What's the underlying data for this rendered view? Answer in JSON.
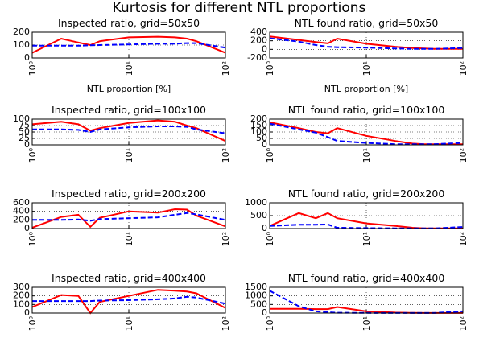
{
  "title": "Kurtosis for different NTL proportions",
  "chart_data": [
    {
      "type": "line",
      "title": "Inspected ratio, grid=50x50",
      "xlabel": "NTL proportion [%]",
      "xscale": "log",
      "x": [
        1,
        2,
        3,
        4,
        5,
        10,
        20,
        30,
        40,
        50,
        100
      ],
      "xlim": [
        1,
        100
      ],
      "xticks": [
        {
          "value": 1,
          "label": "10⁰"
        },
        {
          "value": 10,
          "label": "10¹"
        },
        {
          "value": 100,
          "label": "10²"
        }
      ],
      "ylim": [
        0,
        200
      ],
      "yticks": [
        0,
        100,
        200
      ],
      "grid": true,
      "series": [
        {
          "color": "#ff0000",
          "dash": "solid",
          "values": [
            40,
            150,
            120,
            100,
            130,
            160,
            165,
            160,
            150,
            130,
            40
          ]
        },
        {
          "color": "#0000ff",
          "dash": "dashed",
          "values": [
            95,
            95,
            95,
            98,
            100,
            105,
            110,
            110,
            115,
            115,
            80
          ]
        }
      ]
    },
    {
      "type": "line",
      "title": "NTL found ratio, grid=50x50",
      "xlabel": "NTL proportion [%]",
      "xscale": "log",
      "x": [
        1,
        2,
        3,
        4,
        5,
        10,
        20,
        30,
        40,
        50,
        100
      ],
      "xlim": [
        1,
        100
      ],
      "xticks": [
        {
          "value": 1,
          "label": "10⁰"
        },
        {
          "value": 10,
          "label": "10¹"
        },
        {
          "value": 100,
          "label": "10²"
        }
      ],
      "ylim": [
        -200,
        400
      ],
      "yticks": [
        -200,
        0,
        200,
        400
      ],
      "grid": true,
      "series": [
        {
          "color": "#ff0000",
          "dash": "solid",
          "values": [
            300,
            220,
            170,
            140,
            250,
            130,
            60,
            30,
            20,
            10,
            10
          ]
        },
        {
          "color": "#0000ff",
          "dash": "dashed",
          "values": [
            260,
            180,
            100,
            60,
            50,
            40,
            20,
            10,
            10,
            10,
            30
          ]
        }
      ]
    },
    {
      "type": "line",
      "title": "Inspected ratio, grid=100x100",
      "xscale": "log",
      "x": [
        1,
        2,
        3,
        4,
        5,
        10,
        20,
        30,
        40,
        50,
        100
      ],
      "xlim": [
        1,
        100
      ],
      "xticks": [
        {
          "value": 1,
          "label": "10⁰"
        },
        {
          "value": 10,
          "label": "10¹"
        },
        {
          "value": 100,
          "label": "10²"
        }
      ],
      "ylim": [
        0,
        100
      ],
      "yticks": [
        0,
        25,
        50,
        75,
        100
      ],
      "grid": true,
      "series": [
        {
          "color": "#ff0000",
          "dash": "solid",
          "values": [
            80,
            90,
            80,
            55,
            65,
            85,
            95,
            90,
            75,
            65,
            15
          ]
        },
        {
          "color": "#0000ff",
          "dash": "dashed",
          "values": [
            60,
            60,
            58,
            50,
            60,
            68,
            72,
            72,
            70,
            60,
            45
          ]
        }
      ]
    },
    {
      "type": "line",
      "title": "NTL found ratio, grid=100x100",
      "xscale": "log",
      "x": [
        1,
        2,
        3,
        4,
        5,
        10,
        20,
        30,
        40,
        50,
        100
      ],
      "xlim": [
        1,
        100
      ],
      "xticks": [
        {
          "value": 1,
          "label": "10⁰"
        },
        {
          "value": 10,
          "label": "10¹"
        },
        {
          "value": 100,
          "label": "10²"
        }
      ],
      "ylim": [
        0,
        200
      ],
      "yticks": [
        0,
        50,
        100,
        150,
        200
      ],
      "grid": true,
      "series": [
        {
          "color": "#ff0000",
          "dash": "solid",
          "values": [
            175,
            130,
            100,
            90,
            130,
            70,
            30,
            10,
            5,
            5,
            5
          ]
        },
        {
          "color": "#0000ff",
          "dash": "dashed",
          "values": [
            165,
            120,
            95,
            60,
            30,
            15,
            5,
            5,
            5,
            5,
            15
          ]
        }
      ]
    },
    {
      "type": "line",
      "title": "Inspected ratio, grid=200x200",
      "xscale": "log",
      "x": [
        1,
        2,
        3,
        4,
        5,
        10,
        20,
        30,
        40,
        50,
        100
      ],
      "xlim": [
        1,
        100
      ],
      "xticks": [
        {
          "value": 1,
          "label": "10⁰"
        },
        {
          "value": 10,
          "label": "10¹"
        },
        {
          "value": 100,
          "label": "10²"
        }
      ],
      "ylim": [
        0,
        600
      ],
      "yticks": [
        0,
        200,
        400,
        600
      ],
      "grid": true,
      "series": [
        {
          "color": "#ff0000",
          "dash": "solid",
          "values": [
            20,
            270,
            320,
            40,
            250,
            400,
            370,
            450,
            440,
            300,
            50
          ]
        },
        {
          "color": "#0000ff",
          "dash": "dashed",
          "values": [
            200,
            200,
            210,
            180,
            220,
            240,
            260,
            320,
            360,
            330,
            200
          ]
        }
      ]
    },
    {
      "type": "line",
      "title": "NTL found ratio, grid=200x200",
      "xscale": "log",
      "x": [
        1,
        2,
        3,
        4,
        5,
        10,
        20,
        30,
        40,
        50,
        100
      ],
      "xlim": [
        1,
        100
      ],
      "xticks": [
        {
          "value": 1,
          "label": "10⁰"
        },
        {
          "value": 10,
          "label": "10¹"
        },
        {
          "value": 100,
          "label": "10²"
        }
      ],
      "ylim": [
        0,
        1000
      ],
      "yticks": [
        0,
        500,
        1000
      ],
      "grid": true,
      "series": [
        {
          "color": "#ff0000",
          "dash": "solid",
          "values": [
            100,
            600,
            400,
            600,
            400,
            200,
            100,
            30,
            10,
            5,
            10
          ]
        },
        {
          "color": "#0000ff",
          "dash": "dashed",
          "values": [
            100,
            150,
            150,
            160,
            30,
            20,
            10,
            5,
            5,
            5,
            60
          ]
        }
      ]
    },
    {
      "type": "line",
      "title": "Inspected ratio, grid=400x400",
      "xscale": "log",
      "x": [
        1,
        2,
        3,
        4,
        5,
        10,
        20,
        30,
        40,
        50,
        100
      ],
      "xlim": [
        1,
        100
      ],
      "xticks": [
        {
          "value": 1,
          "label": "10⁰"
        },
        {
          "value": 10,
          "label": "10¹"
        },
        {
          "value": 100,
          "label": "10²"
        }
      ],
      "ylim": [
        0,
        300
      ],
      "yticks": [
        0,
        100,
        200,
        300
      ],
      "grid": true,
      "series": [
        {
          "color": "#ff0000",
          "dash": "solid",
          "values": [
            70,
            210,
            200,
            0,
            130,
            200,
            270,
            260,
            250,
            230,
            60
          ]
        },
        {
          "color": "#0000ff",
          "dash": "dashed",
          "values": [
            140,
            140,
            140,
            140,
            145,
            150,
            160,
            170,
            190,
            180,
            110
          ]
        }
      ]
    },
    {
      "type": "line",
      "title": "NTL found ratio, grid=400x400",
      "xscale": "log",
      "x": [
        1,
        2,
        3,
        4,
        5,
        10,
        20,
        30,
        40,
        50,
        100
      ],
      "xlim": [
        1,
        100
      ],
      "xticks": [
        {
          "value": 1,
          "label": "10⁰"
        },
        {
          "value": 10,
          "label": "10¹"
        },
        {
          "value": 100,
          "label": "10²"
        }
      ],
      "ylim": [
        0,
        1500
      ],
      "yticks": [
        0,
        500,
        1000,
        1500
      ],
      "grid": true,
      "series": [
        {
          "color": "#ff0000",
          "dash": "solid",
          "values": [
            250,
            250,
            230,
            230,
            350,
            100,
            30,
            10,
            5,
            5,
            5
          ]
        },
        {
          "color": "#0000ff",
          "dash": "dashed",
          "values": [
            1300,
            400,
            100,
            50,
            20,
            10,
            5,
            5,
            5,
            5,
            100
          ]
        }
      ]
    }
  ]
}
